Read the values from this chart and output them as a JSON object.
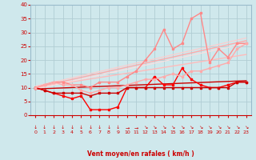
{
  "xlabel": "Vent moyen/en rafales ( km/h )",
  "xlim": [
    -0.5,
    23.5
  ],
  "ylim": [
    0,
    40
  ],
  "yticks": [
    0,
    5,
    10,
    15,
    20,
    25,
    30,
    35,
    40
  ],
  "xticks": [
    0,
    1,
    2,
    3,
    4,
    5,
    6,
    7,
    8,
    9,
    10,
    11,
    12,
    13,
    14,
    15,
    16,
    17,
    18,
    19,
    20,
    21,
    22,
    23
  ],
  "bg_color": "#cfe8ec",
  "grid_color": "#b0cdd4",
  "series_data": [
    {
      "x": [
        0,
        1,
        2,
        3,
        4,
        5,
        6,
        7,
        8,
        9,
        10,
        11,
        12,
        13,
        14,
        15,
        16,
        17,
        18,
        19,
        20,
        21,
        22,
        23
      ],
      "y": [
        10,
        9,
        8,
        7,
        6,
        7,
        2,
        2,
        2,
        3,
        10,
        10,
        10,
        14,
        11,
        11,
        17,
        13,
        11,
        10,
        10,
        11,
        12,
        12
      ],
      "color": "#ff0000",
      "lw": 1.0,
      "marker": "s",
      "ms": 2.0
    },
    {
      "x": [
        0,
        1,
        2,
        3,
        4,
        5,
        6,
        7,
        8,
        9,
        10,
        11,
        12,
        13,
        14,
        15,
        16,
        17,
        18,
        19,
        20,
        21,
        22,
        23
      ],
      "y": [
        10,
        9,
        8,
        8,
        8,
        8,
        7,
        8,
        8,
        8,
        10,
        10,
        10,
        10,
        10,
        10,
        10,
        10,
        10,
        10,
        10,
        10,
        12,
        12
      ],
      "color": "#cc0000",
      "lw": 1.0,
      "marker": "s",
      "ms": 2.0
    },
    {
      "x": [
        0,
        1,
        2,
        3,
        4,
        5,
        6,
        7,
        8,
        9,
        10,
        11,
        12,
        13,
        14,
        15,
        16,
        17,
        18,
        19,
        20,
        21,
        22,
        23
      ],
      "y": [
        10,
        11,
        12,
        12,
        11,
        11,
        10,
        12,
        12,
        12,
        14,
        16,
        20,
        24,
        31,
        24,
        26,
        35,
        37,
        19,
        24,
        21,
        26,
        26
      ],
      "color": "#ff8888",
      "lw": 1.0,
      "marker": "s",
      "ms": 2.0
    },
    {
      "x": [
        0,
        1,
        2,
        3,
        4,
        5,
        6,
        7,
        8,
        9,
        10,
        11,
        12,
        13,
        14,
        15,
        16,
        17,
        18,
        19,
        20,
        21,
        22,
        23
      ],
      "y": [
        10,
        11,
        12,
        11,
        11,
        9,
        8,
        9,
        10,
        10,
        11,
        12,
        13,
        13,
        14,
        15,
        14,
        16,
        16,
        17,
        18,
        19,
        24,
        26
      ],
      "color": "#ffaaaa",
      "lw": 1.0,
      "marker": "s",
      "ms": 2.0
    }
  ],
  "trend_lines": [
    {
      "x0": 0,
      "y0": 9.5,
      "x1": 23,
      "y1": 12.5,
      "color": "#cc0000",
      "lw": 1.0
    },
    {
      "x0": 0,
      "y0": 10.0,
      "x1": 23,
      "y1": 27.0,
      "color": "#ffaaaa",
      "lw": 1.0
    },
    {
      "x0": 0,
      "y0": 10.0,
      "x1": 23,
      "y1": 22.0,
      "color": "#ffbbbb",
      "lw": 1.0
    },
    {
      "x0": 0,
      "y0": 10.5,
      "x1": 23,
      "y1": 28.0,
      "color": "#ffcccc",
      "lw": 0.8
    },
    {
      "x0": 0,
      "y0": 9.5,
      "x1": 23,
      "y1": 26.0,
      "color": "#ffdddd",
      "lw": 0.8
    }
  ],
  "wind_arrows": {
    "positions": [
      0,
      1,
      2,
      3,
      4,
      5,
      6,
      7,
      8,
      9,
      10,
      11,
      12,
      13,
      14,
      15,
      16,
      17,
      18,
      19,
      20,
      21,
      22,
      23
    ],
    "directions": [
      "down",
      "down",
      "down",
      "down",
      "down",
      "down",
      "down",
      "down",
      "down",
      "down",
      "right",
      "right",
      "downright",
      "downright",
      "downright",
      "downright",
      "downright",
      "downright",
      "downright",
      "downright",
      "downright",
      "downright",
      "downright",
      "downright"
    ],
    "color": "#cc0000"
  }
}
